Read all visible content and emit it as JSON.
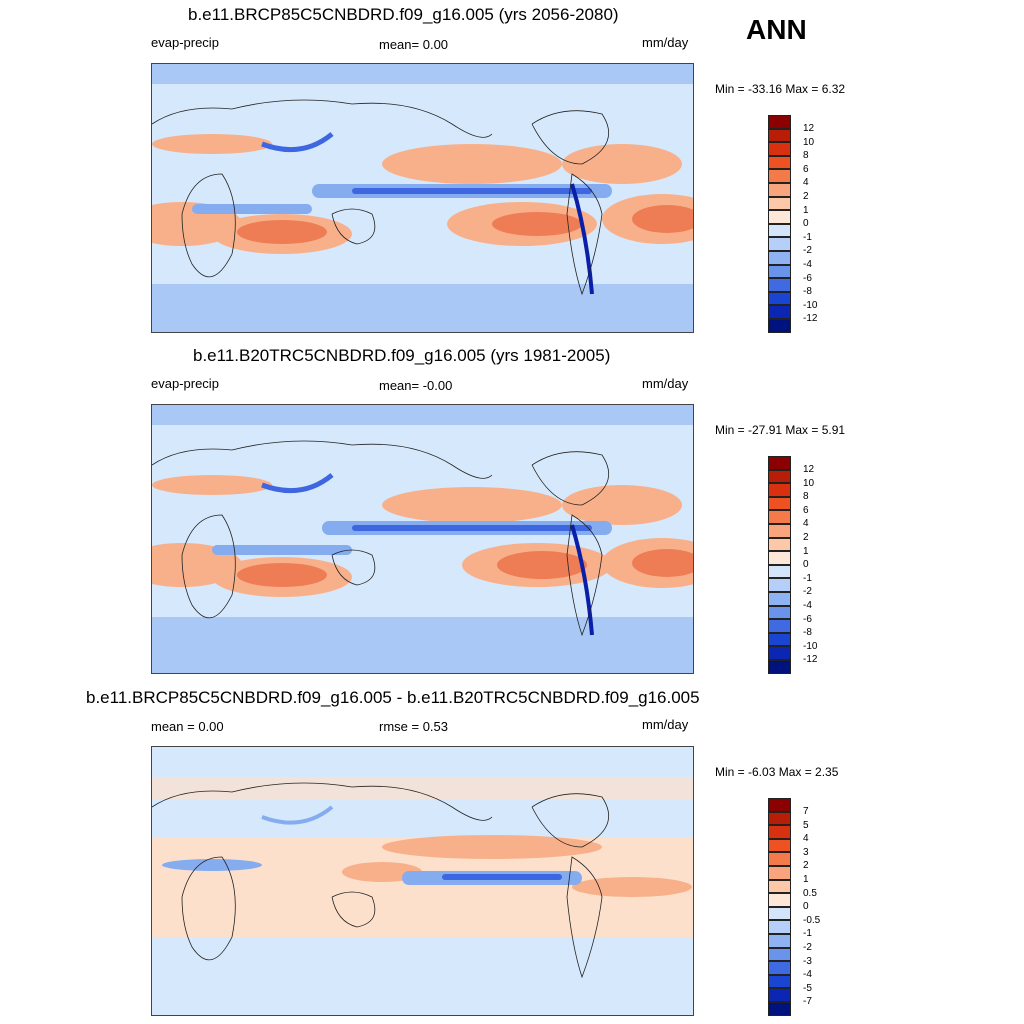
{
  "header": {
    "season": "ANN"
  },
  "colors": {
    "land": "#d6e8fb",
    "ocean_neg": "#aac8f5",
    "pos_light": "#fde0cb",
    "pos_mid": "#f8b08a",
    "pos_strong": "#ee7d55",
    "neg_mid": "#86acf0",
    "neg_strong": "#3d66e0",
    "neg_deep": "#0a1fa8"
  },
  "panels": [
    {
      "title": "b.e11.BRCP85C5CNBDRD.f09_g16.005 (yrs 2056-2080)",
      "left_label": "evap-precip",
      "center_label": "mean=   0.00",
      "right_label": "mm/day",
      "minmax": "Min = -33.16 Max =    6.32",
      "colorbar": {
        "levels": [
          "12",
          "10",
          "8",
          "6",
          "4",
          "2",
          "1",
          "0",
          "-1",
          "-2",
          "-4",
          "-6",
          "-8",
          "-10",
          "-12"
        ],
        "colors": [
          "#8b0000",
          "#b81d08",
          "#d93010",
          "#ee5223",
          "#f47a4a",
          "#f8a47c",
          "#fcc8a8",
          "#fde7d8",
          "#d3e4fb",
          "#b5cff8",
          "#8fb3f2",
          "#6a93ec",
          "#3f6ae2",
          "#1a45d2",
          "#0a26b3",
          "#00127e"
        ]
      }
    },
    {
      "title": "b.e11.B20TRC5CNBDRD.f09_g16.005 (yrs 1981-2005)",
      "left_label": "evap-precip",
      "center_label": "mean=  -0.00",
      "right_label": "mm/day",
      "minmax": "Min = -27.91 Max =    5.91",
      "colorbar": {
        "levels": [
          "12",
          "10",
          "8",
          "6",
          "4",
          "2",
          "1",
          "0",
          "-1",
          "-2",
          "-4",
          "-6",
          "-8",
          "-10",
          "-12"
        ],
        "colors": [
          "#8b0000",
          "#b81d08",
          "#d93010",
          "#ee5223",
          "#f47a4a",
          "#f8a47c",
          "#fcc8a8",
          "#fde7d8",
          "#d3e4fb",
          "#b5cff8",
          "#8fb3f2",
          "#6a93ec",
          "#3f6ae2",
          "#1a45d2",
          "#0a26b3",
          "#00127e"
        ]
      }
    },
    {
      "title": "b.e11.BRCP85C5CNBDRD.f09_g16.005 - b.e11.B20TRC5CNBDRD.f09_g16.005",
      "left_label": "mean =   0.00",
      "center_label": "rmse =   0.53",
      "right_label": "mm/day",
      "minmax": "Min =  -6.03 Max =    2.35",
      "colorbar": {
        "levels": [
          "7",
          "5",
          "4",
          "3",
          "2",
          "1",
          "0.5",
          "0",
          "-0.5",
          "-1",
          "-2",
          "-3",
          "-4",
          "-5",
          "-7"
        ],
        "colors": [
          "#8b0000",
          "#b81d08",
          "#d93010",
          "#ee5223",
          "#f47a4a",
          "#f8a47c",
          "#fcc8a8",
          "#fde7d8",
          "#d3e4fb",
          "#b5cff8",
          "#8fb3f2",
          "#6a93ec",
          "#3f6ae2",
          "#1a45d2",
          "#0a26b3",
          "#00127e"
        ]
      }
    }
  ]
}
